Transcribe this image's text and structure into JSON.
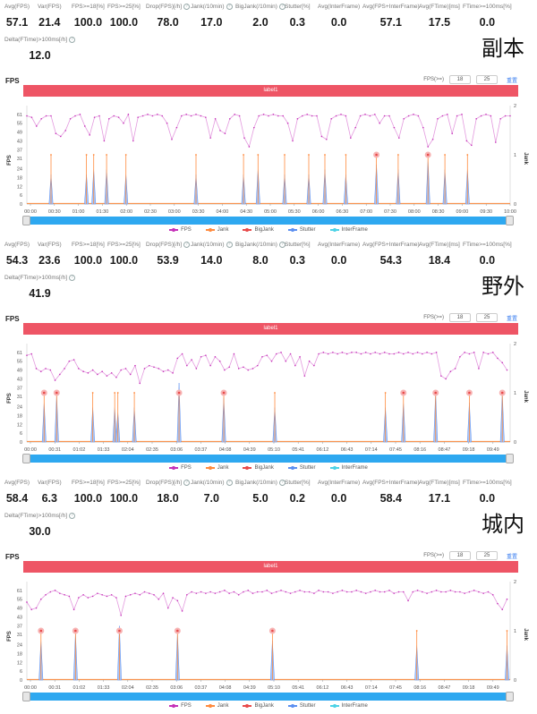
{
  "colors": {
    "fps": "#c530b8",
    "jank": "#ff8a3d",
    "bigjank": "#e84a4a",
    "stutter": "#5b8ff0",
    "interframe": "#4dd2e6",
    "band": "#ee5565"
  },
  "sections": [
    {
      "scene_title": "副本",
      "stats": [
        {
          "label": "Avg(FPS)",
          "value": "57.1"
        },
        {
          "label": "Var(FPS)",
          "value": "21.4"
        },
        {
          "label": "FPS>=18[%]",
          "value": "100.0"
        },
        {
          "label": "FPS>=25[%]",
          "value": "100.0"
        },
        {
          "label": "Drop(FPS)[/h]",
          "value": "78.0",
          "help": true
        },
        {
          "label": "Jank(/10min)",
          "value": "17.0",
          "help": true
        },
        {
          "label": "BigJank(/10min)",
          "value": "2.0",
          "help": true
        },
        {
          "label": "Stutter[%]",
          "value": "0.3"
        },
        {
          "label": "Avg(InterFrame)",
          "value": "0.0"
        },
        {
          "label": "Avg(FPS+InterFrame)",
          "value": "57.1"
        },
        {
          "label": "Avg(FTime)[ms]",
          "value": "17.5"
        },
        {
          "label": "FTime>=100ms[%]",
          "value": "0.0"
        }
      ],
      "delta": {
        "label": "Delta(FTime)>100ms[/h]",
        "value": "12.0"
      },
      "chart_title": "FPS",
      "threshold_label": "FPS(>=)",
      "threshold_values": [
        "18",
        "25"
      ],
      "reset_label": "重置",
      "band_label": "label1",
      "legend": [
        "FPS",
        "Jank",
        "BigJank",
        "Stutter",
        "InterFrame"
      ]
    },
    {
      "scene_title": "野外",
      "stats": [
        {
          "label": "Avg(FPS)",
          "value": "54.3"
        },
        {
          "label": "Var(FPS)",
          "value": "23.6"
        },
        {
          "label": "FPS>=18[%]",
          "value": "100.0"
        },
        {
          "label": "FPS>=25[%]",
          "value": "100.0"
        },
        {
          "label": "Drop(FPS)[/h]",
          "value": "53.9",
          "help": true
        },
        {
          "label": "Jank(/10min)",
          "value": "14.0",
          "help": true
        },
        {
          "label": "BigJank(/10min)",
          "value": "8.0",
          "help": true
        },
        {
          "label": "Stutter[%]",
          "value": "0.3"
        },
        {
          "label": "Avg(InterFrame)",
          "value": "0.0"
        },
        {
          "label": "Avg(FPS+InterFrame)",
          "value": "54.3"
        },
        {
          "label": "Avg(FTime)[ms]",
          "value": "18.4"
        },
        {
          "label": "FTime>=100ms[%]",
          "value": "0.0"
        }
      ],
      "delta": {
        "label": "Delta(FTime)>100ms[/h]",
        "value": "41.9"
      },
      "chart_title": "FPS",
      "threshold_label": "FPS(>=)",
      "threshold_values": [
        "18",
        "25"
      ],
      "reset_label": "重置",
      "band_label": "label1",
      "legend": [
        "FPS",
        "Jank",
        "BigJank",
        "Stutter",
        "InterFrame"
      ]
    },
    {
      "scene_title": "城内",
      "stats": [
        {
          "label": "Avg(FPS)",
          "value": "58.4"
        },
        {
          "label": "Var(FPS)",
          "value": "6.3"
        },
        {
          "label": "FPS>=18[%]",
          "value": "100.0"
        },
        {
          "label": "FPS>=25[%]",
          "value": "100.0"
        },
        {
          "label": "Drop(FPS)[/h]",
          "value": "18.0",
          "help": true
        },
        {
          "label": "Jank(/10min)",
          "value": "7.0",
          "help": true
        },
        {
          "label": "BigJank(/10min)",
          "value": "5.0",
          "help": true
        },
        {
          "label": "Stutter[%]",
          "value": "0.2"
        },
        {
          "label": "Avg(InterFrame)",
          "value": "0.0"
        },
        {
          "label": "Avg(FPS+InterFrame)",
          "value": "58.4"
        },
        {
          "label": "Avg(FTime)[ms]",
          "value": "17.1"
        },
        {
          "label": "FTime>=100ms[%]",
          "value": "0.0"
        }
      ],
      "delta": {
        "label": "Delta(FTime)>100ms[/h]",
        "value": "30.0"
      },
      "chart_title": "FPS",
      "threshold_label": "FPS(>=)",
      "threshold_values": [
        "18",
        "25"
      ],
      "reset_label": "重置",
      "band_label": "label1",
      "legend": [
        "FPS",
        "Jank",
        "BigJank",
        "Stutter",
        "InterFrame"
      ]
    }
  ],
  "chart_data": [
    {
      "type": "line",
      "ylabel": "FPS",
      "y2label": "Jank",
      "ylim": [
        0,
        67
      ],
      "y2lim": [
        0,
        2
      ],
      "xlim_seconds": [
        0,
        600
      ],
      "y_ticks": [
        "0",
        "6",
        "12",
        "18",
        "24",
        "31",
        "37",
        "43",
        "49",
        "55",
        "61"
      ],
      "y2_ticks": [
        "0",
        "1",
        "2"
      ],
      "x_ticks": [
        "00:00",
        "00:30",
        "01:00",
        "01:30",
        "02:00",
        "02:30",
        "03:00",
        "03:30",
        "04:00",
        "04:30",
        "05:00",
        "05:30",
        "06:00",
        "06:30",
        "07:00",
        "07:30",
        "08:00",
        "08:30",
        "09:00",
        "09:30",
        "10:00"
      ],
      "sample_interval_seconds": 6,
      "fps": [
        60,
        59,
        53,
        58,
        60,
        60,
        48,
        46,
        50,
        58,
        60,
        61,
        53,
        47,
        59,
        60,
        43,
        58,
        60,
        59,
        55,
        61,
        43,
        59,
        60,
        61,
        60,
        61,
        60,
        55,
        44,
        52,
        60,
        61,
        60,
        61,
        60,
        59,
        45,
        58,
        50,
        48,
        58,
        61,
        60,
        45,
        39,
        52,
        60,
        61,
        60,
        61,
        60,
        60,
        55,
        43,
        58,
        60,
        61,
        60,
        60,
        46,
        44,
        58,
        60,
        61,
        60,
        45,
        52,
        60,
        61,
        60,
        61,
        55,
        60,
        60,
        52,
        45,
        58,
        60,
        61,
        60,
        52,
        39,
        44,
        58,
        60,
        61,
        48,
        60,
        61,
        43,
        40,
        58,
        60,
        61,
        60,
        42,
        58,
        60,
        60
      ],
      "jank_events": [
        {
          "t": 30,
          "stutter": 0.6
        },
        {
          "t": 74,
          "stutter": 0.6
        },
        {
          "t": 83,
          "stutter": 0.7
        },
        {
          "t": 99,
          "stutter": 0.7
        },
        {
          "t": 123,
          "stutter": 0.6
        },
        {
          "t": 210,
          "stutter": 0.6
        },
        {
          "t": 269,
          "stutter": 0.6
        },
        {
          "t": 287,
          "stutter": 0.7
        },
        {
          "t": 320,
          "stutter": 0.6
        },
        {
          "t": 350,
          "stutter": 0.6
        },
        {
          "t": 370,
          "stutter": 0.7
        },
        {
          "t": 396,
          "stutter": 0.6
        },
        {
          "t": 434,
          "stutter": 0.8,
          "big": true
        },
        {
          "t": 461,
          "stutter": 0.7
        },
        {
          "t": 498,
          "stutter": 0.9,
          "big": true
        },
        {
          "t": 519,
          "stutter": 0.7
        },
        {
          "t": 547,
          "stutter": 0.7
        }
      ]
    },
    {
      "type": "line",
      "ylabel": "FPS",
      "y2label": "Jank",
      "ylim": [
        0,
        67
      ],
      "y2lim": [
        0,
        2
      ],
      "xlim_seconds": [
        0,
        616
      ],
      "y_ticks": [
        "0",
        "6",
        "12",
        "18",
        "24",
        "31",
        "37",
        "43",
        "49",
        "55",
        "61"
      ],
      "y2_ticks": [
        "0",
        "1",
        "2"
      ],
      "x_ticks": [
        "00:00",
        "00:31",
        "01:02",
        "01:33",
        "02:04",
        "02:35",
        "03:06",
        "03:37",
        "04:08",
        "04:39",
        "05:10",
        "05:41",
        "06:12",
        "06:43",
        "07:14",
        "07:45",
        "08:16",
        "08:47",
        "09:18",
        "09:49"
      ],
      "sample_interval_seconds": 6,
      "fps": [
        59,
        60,
        50,
        48,
        50,
        49,
        42,
        46,
        50,
        55,
        56,
        50,
        48,
        47,
        49,
        46,
        48,
        45,
        47,
        44,
        49,
        50,
        46,
        52,
        40,
        50,
        52,
        51,
        50,
        48,
        49,
        47,
        57,
        60,
        52,
        56,
        50,
        58,
        59,
        52,
        58,
        55,
        49,
        51,
        60,
        50,
        51,
        49,
        50,
        52,
        58,
        59,
        55,
        60,
        61,
        55,
        60,
        52,
        58,
        45,
        55,
        52,
        60,
        61,
        60,
        61,
        60,
        61,
        60,
        61,
        61,
        60,
        61,
        60,
        61,
        60,
        61,
        60,
        60,
        61,
        60,
        61,
        60,
        61,
        60,
        61,
        60,
        61,
        45,
        43,
        48,
        50,
        58,
        61,
        60,
        61,
        50,
        61,
        60,
        61,
        57,
        54,
        49,
        43,
        52,
        56,
        61
      ],
      "jank_events": [
        {
          "t": 22,
          "stutter": 0.8,
          "big": true
        },
        {
          "t": 38,
          "stutter": 0.95,
          "big": true
        },
        {
          "t": 84,
          "stutter": 0.7
        },
        {
          "t": 112,
          "stutter": 0.7
        },
        {
          "t": 116,
          "stutter": 0.6
        },
        {
          "t": 137,
          "stutter": 0.7
        },
        {
          "t": 194,
          "stutter": 1.2,
          "big": true
        },
        {
          "t": 251,
          "stutter": 0.9,
          "big": true
        },
        {
          "t": 316,
          "stutter": 0.7
        },
        {
          "t": 457,
          "stutter": 0.7
        },
        {
          "t": 480,
          "stutter": 0.8,
          "big": true
        },
        {
          "t": 521,
          "stutter": 1.0,
          "big": true
        },
        {
          "t": 564,
          "stutter": 0.8,
          "big": true
        },
        {
          "t": 606,
          "stutter": 1.0,
          "big": true
        }
      ]
    },
    {
      "type": "line",
      "ylabel": "FPS",
      "y2label": "Jank",
      "ylim": [
        0,
        67
      ],
      "y2lim": [
        0,
        2
      ],
      "xlim_seconds": [
        0,
        616
      ],
      "y_ticks": [
        "0",
        "6",
        "12",
        "18",
        "24",
        "31",
        "37",
        "43",
        "49",
        "55",
        "61"
      ],
      "y2_ticks": [
        "0",
        "1",
        "2"
      ],
      "x_ticks": [
        "00:00",
        "00:31",
        "01:02",
        "01:33",
        "02:04",
        "02:35",
        "03:06",
        "03:37",
        "04:08",
        "04:39",
        "05:10",
        "05:41",
        "06:12",
        "06:43",
        "07:14",
        "07:45",
        "08:16",
        "08:47",
        "09:18",
        "09:49"
      ],
      "sample_interval_seconds": 6,
      "fps": [
        53,
        48,
        49,
        55,
        58,
        60,
        61,
        59,
        58,
        57,
        48,
        56,
        58,
        56,
        57,
        59,
        58,
        57,
        58,
        56,
        44,
        57,
        58,
        59,
        58,
        60,
        59,
        58,
        55,
        59,
        49,
        56,
        54,
        47,
        58,
        60,
        59,
        60,
        59,
        60,
        59,
        60,
        61,
        59,
        60,
        58,
        60,
        61,
        59,
        60,
        60,
        61,
        59,
        60,
        61,
        60,
        59,
        60,
        61,
        60,
        60,
        59,
        61,
        60,
        60,
        59,
        60,
        61,
        60,
        60,
        61,
        60,
        59,
        60,
        61,
        60,
        60,
        61,
        59,
        60,
        60,
        54,
        60,
        61,
        60,
        59,
        60,
        61,
        60,
        60,
        61,
        60,
        60,
        59,
        60,
        61,
        60,
        59,
        60,
        58,
        52,
        48,
        55
      ],
      "jank_events": [
        {
          "t": 18,
          "stutter": 0.8,
          "big": true
        },
        {
          "t": 62,
          "stutter": 0.95,
          "big": true
        },
        {
          "t": 118,
          "stutter": 1.1,
          "big": true
        },
        {
          "t": 192,
          "stutter": 0.95,
          "big": true
        },
        {
          "t": 313,
          "stutter": 0.8,
          "big": true
        },
        {
          "t": 497,
          "stutter": 0.7
        },
        {
          "t": 612,
          "stutter": 0.7
        }
      ]
    }
  ]
}
